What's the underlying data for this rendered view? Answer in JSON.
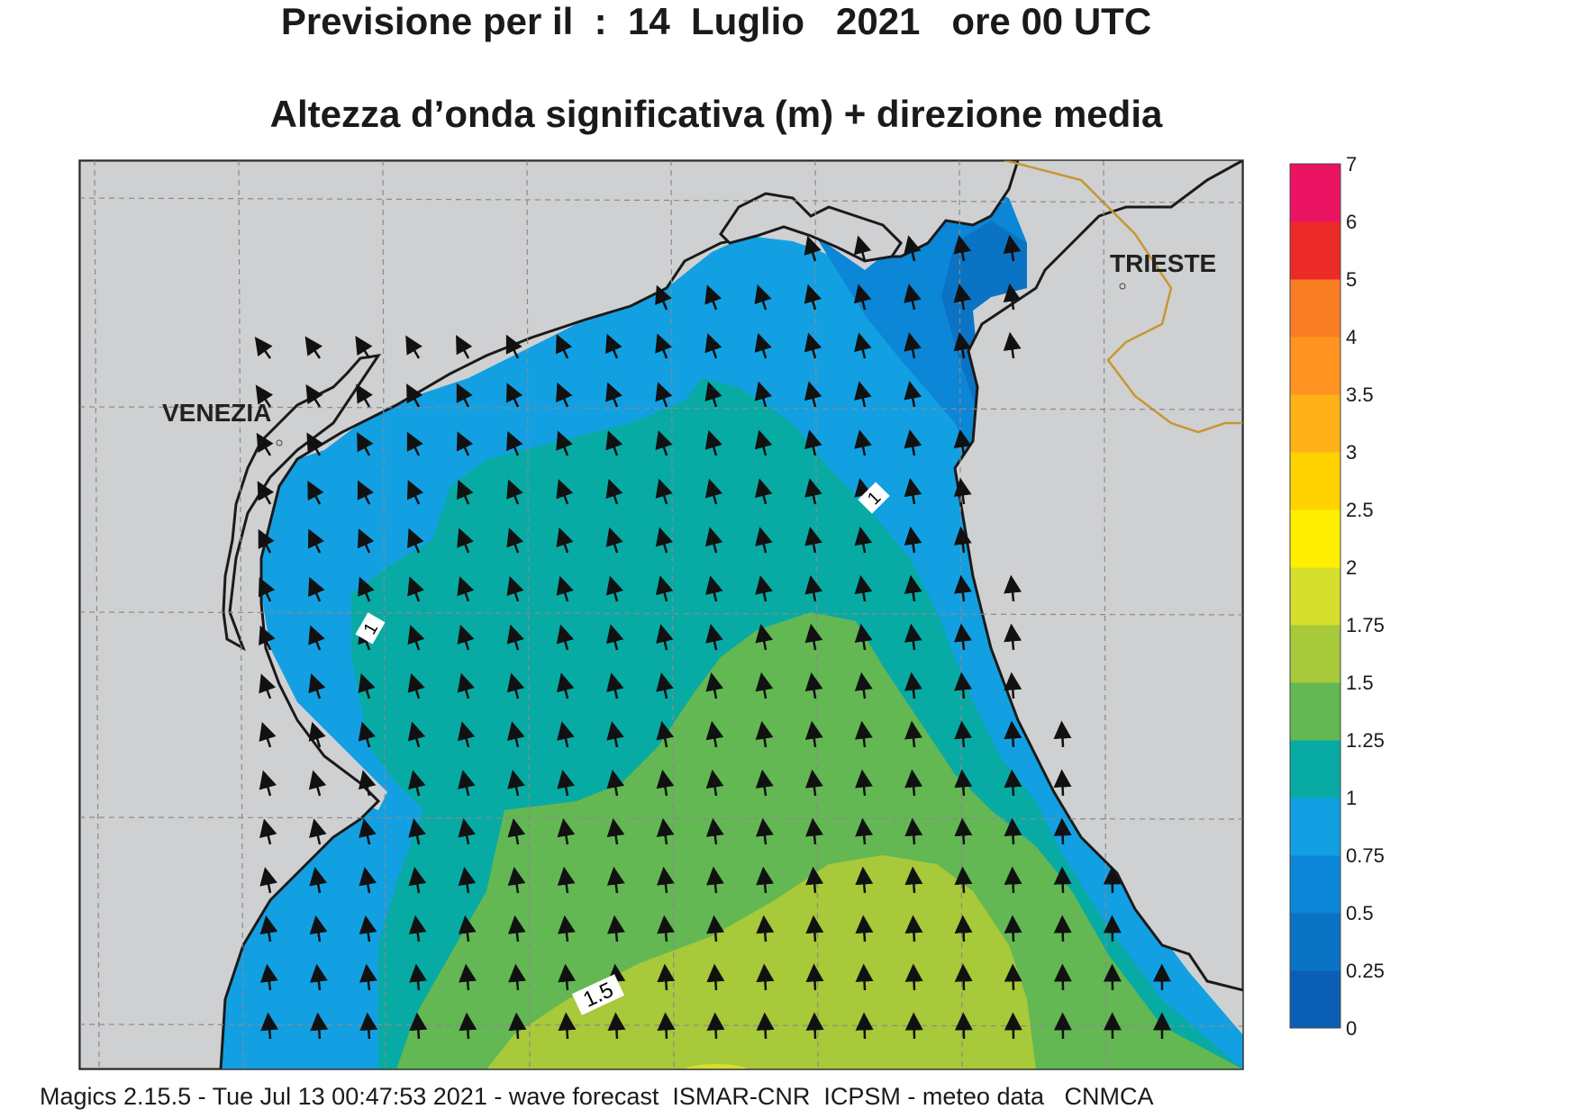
{
  "title_line1": "Previsione per il  :  14  Luglio   2021   ore 00 UTC",
  "title_line2": "Altezza d’onda significativa (m) + direzione media",
  "footer": "Magics 2.15.5 - Tue Jul 13 00:47:53 2021 - wave forecast  ISMAR-CNR  ICPSM - meteo data   CNMCA",
  "places": {
    "venezia": "VENEZIA",
    "trieste": "TRIESTE"
  },
  "contour_labels": [
    "1",
    "1",
    "1.5"
  ],
  "colorbar": {
    "labels": [
      "7",
      "6",
      "5",
      "4",
      "3.5",
      "3",
      "2.5",
      "2",
      "1.75",
      "1.5",
      "1.25",
      "1",
      "0.75",
      "0.5",
      "0.25",
      "0"
    ],
    "colors": [
      "#0a5fb4",
      "#0b73c4",
      "#0c86d6",
      "#12a0e2",
      "#08aaa4",
      "#63b853",
      "#a7c93a",
      "#d6e02c",
      "#ffef00",
      "#ffd200",
      "#ffb118",
      "#ff9420",
      "#fb7d23",
      "#ec2a28",
      "#eb1462"
    ]
  },
  "colors": {
    "land": "#cfd0d2",
    "coast": "#1a1a1a",
    "border": "#c89632",
    "grid": "#8a8a8a"
  }
}
